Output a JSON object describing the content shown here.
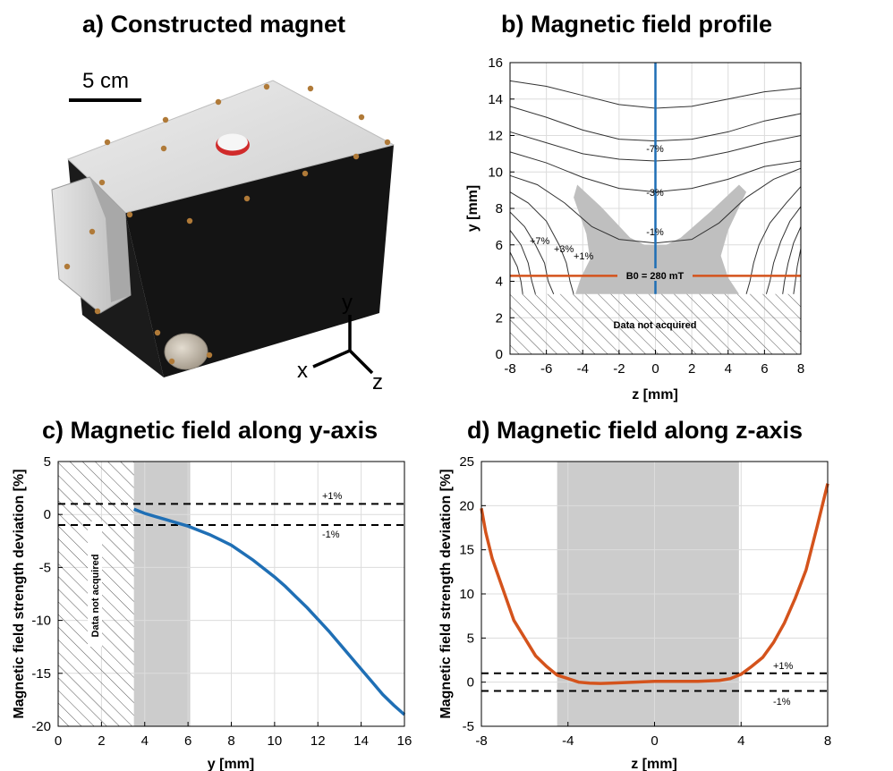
{
  "panel_a": {
    "title": "a) Constructed magnet",
    "scale_label": "5 cm",
    "axes_labels": {
      "y": "y",
      "x": "x",
      "z": "z"
    }
  },
  "chart_data": [
    {
      "id": "b",
      "type": "line",
      "title": "b) Magnetic field profile",
      "xlabel": "z [mm]",
      "ylabel": "y [mm]",
      "xlim": [
        -8,
        8
      ],
      "ylim": [
        0,
        16
      ],
      "xticks": [
        -8,
        -6,
        -4,
        -2,
        0,
        2,
        4,
        6,
        8
      ],
      "yticks": [
        0,
        2,
        4,
        6,
        8,
        10,
        12,
        14,
        16
      ],
      "grid": true,
      "masked_region": {
        "label": "Data not acquired",
        "y": [
          0,
          3.3
        ]
      },
      "vertical_line": {
        "z": 0,
        "color": "#1f6fb5"
      },
      "horizontal_line": {
        "y": 4.3,
        "color": "#d4531c",
        "label": "B0 = 280 mT"
      },
      "contour_labels": [
        "-7%",
        "-3%",
        "-1%",
        "+7%",
        "+3%",
        "+1%"
      ],
      "contours": [
        [
          [
            -8,
            15.0
          ],
          [
            -6,
            14.7
          ],
          [
            -4,
            14.2
          ],
          [
            -2,
            13.7
          ],
          [
            0,
            13.5
          ],
          [
            2,
            13.6
          ],
          [
            4,
            14.0
          ],
          [
            6,
            14.4
          ],
          [
            8,
            14.6
          ]
        ],
        [
          [
            -8,
            13.6
          ],
          [
            -6,
            13.0
          ],
          [
            -4,
            12.3
          ],
          [
            -2,
            11.8
          ],
          [
            0,
            11.7
          ],
          [
            2,
            11.8
          ],
          [
            4,
            12.2
          ],
          [
            6,
            12.8
          ],
          [
            8,
            13.2
          ]
        ],
        [
          [
            -8,
            12.2
          ],
          [
            -6,
            11.6
          ],
          [
            -4,
            11.0
          ],
          [
            -2,
            10.7
          ],
          [
            0,
            10.6
          ],
          [
            2,
            10.7
          ],
          [
            4,
            11.1
          ],
          [
            6,
            11.6
          ],
          [
            8,
            12.0
          ]
        ],
        [
          [
            -8,
            11.1
          ],
          [
            -6,
            10.5
          ],
          [
            -4,
            9.7
          ],
          [
            -2,
            9.1
          ],
          [
            0,
            8.9
          ],
          [
            2,
            9.1
          ],
          [
            4,
            9.6
          ],
          [
            6,
            10.3
          ],
          [
            8,
            10.6
          ]
        ],
        [
          [
            -8,
            9.8
          ],
          [
            -6.5,
            9.3
          ],
          [
            -5,
            8.3
          ],
          [
            -3.5,
            7.0
          ],
          [
            -2,
            6.3
          ],
          [
            0,
            6.1
          ],
          [
            2,
            6.3
          ],
          [
            3.5,
            7.2
          ],
          [
            5,
            8.6
          ],
          [
            6.5,
            9.6
          ],
          [
            8,
            10.2
          ]
        ],
        [
          [
            -8,
            8.9
          ],
          [
            -7,
            8.3
          ],
          [
            -6,
            7.3
          ],
          [
            -5.3,
            6.0
          ],
          [
            -4.9,
            5.0
          ],
          [
            -4.7,
            4.0
          ],
          [
            -4.5,
            3.3
          ]
        ],
        [
          [
            -8,
            7.8
          ],
          [
            -7.2,
            7.0
          ],
          [
            -6.6,
            6.0
          ],
          [
            -6.1,
            5.0
          ],
          [
            -5.9,
            4.0
          ],
          [
            -5.6,
            3.3
          ]
        ],
        [
          [
            -8,
            6.8
          ],
          [
            -7.4,
            6.0
          ],
          [
            -7.0,
            5.0
          ],
          [
            -6.8,
            4.0
          ],
          [
            -6.6,
            3.3
          ]
        ],
        [
          [
            -8,
            5.6
          ],
          [
            -7.6,
            4.8
          ],
          [
            -7.4,
            4.0
          ],
          [
            -7.3,
            3.3
          ]
        ],
        [
          [
            8,
            9.2
          ],
          [
            7.2,
            8.3
          ],
          [
            6.3,
            7.2
          ],
          [
            5.7,
            6.0
          ],
          [
            5.4,
            5.0
          ],
          [
            5.2,
            4.0
          ],
          [
            5.0,
            3.3
          ]
        ],
        [
          [
            8,
            8.1
          ],
          [
            7.4,
            7.3
          ],
          [
            6.9,
            6.2
          ],
          [
            6.5,
            5.0
          ],
          [
            6.3,
            4.0
          ],
          [
            6.1,
            3.3
          ]
        ],
        [
          [
            8,
            7.0
          ],
          [
            7.6,
            6.1
          ],
          [
            7.3,
            5.0
          ],
          [
            7.1,
            4.0
          ],
          [
            7.0,
            3.3
          ]
        ],
        [
          [
            8,
            5.8
          ],
          [
            7.8,
            4.8
          ],
          [
            7.7,
            4.0
          ],
          [
            7.6,
            3.3
          ]
        ]
      ],
      "shaded_region": [
        [
          -4.4,
          3.3
        ],
        [
          -4.1,
          4.2
        ],
        [
          -3.6,
          5.2
        ],
        [
          -3.8,
          6.6
        ],
        [
          -4.5,
          8.6
        ],
        [
          -4.3,
          9.3
        ],
        [
          -3.0,
          8.1
        ],
        [
          -1.4,
          6.4
        ],
        [
          -0.6,
          6.0
        ],
        [
          0.6,
          6.0
        ],
        [
          1.4,
          6.4
        ],
        [
          3.0,
          7.8
        ],
        [
          4.6,
          9.3
        ],
        [
          5.0,
          8.9
        ],
        [
          4.0,
          6.8
        ],
        [
          3.6,
          5.4
        ],
        [
          4.0,
          4.2
        ],
        [
          4.6,
          3.3
        ]
      ]
    },
    {
      "id": "c",
      "type": "line",
      "title": "c) Magnetic field along y-axis",
      "xlabel": "y [mm]",
      "ylabel": "Magnetic field strength deviation [%]",
      "xlim": [
        0,
        16
      ],
      "ylim": [
        -20,
        5
      ],
      "xticks": [
        0,
        2,
        4,
        6,
        8,
        10,
        12,
        14,
        16
      ],
      "yticks": [
        -20,
        -15,
        -10,
        -5,
        0,
        5
      ],
      "grid": true,
      "masked_region": {
        "label": "Data not acquired",
        "x": [
          0,
          3.5
        ]
      },
      "shaded_band": [
        3.5,
        6.1
      ],
      "thresholds": [
        {
          "value": 1,
          "label": "+1%"
        },
        {
          "value": -1,
          "label": "-1%"
        }
      ],
      "series": [
        {
          "color": "#1f6fb5",
          "x": [
            3.5,
            4.0,
            4.5,
            5.0,
            5.5,
            6.0,
            6.5,
            7.0,
            7.5,
            8.0,
            8.5,
            9.0,
            9.5,
            10.0,
            10.5,
            11.0,
            11.5,
            12.0,
            12.5,
            13.0,
            13.5,
            14.0,
            14.5,
            15.0,
            15.5,
            16.0
          ],
          "values": [
            0.5,
            0.1,
            -0.2,
            -0.5,
            -0.8,
            -1.1,
            -1.5,
            -1.9,
            -2.4,
            -2.9,
            -3.6,
            -4.3,
            -5.1,
            -5.9,
            -6.8,
            -7.8,
            -8.8,
            -9.9,
            -11.0,
            -12.2,
            -13.4,
            -14.6,
            -15.8,
            -17.0,
            -18.0,
            -18.9
          ]
        }
      ]
    },
    {
      "id": "d",
      "type": "line",
      "title": "d) Magnetic field along z-axis",
      "xlabel": "z [mm]",
      "ylabel": "Magnetic field strength deviation [%]",
      "xlim": [
        -8,
        8
      ],
      "ylim": [
        -5,
        25
      ],
      "xticks": [
        -8,
        -4,
        0,
        4,
        8
      ],
      "yticks": [
        -5,
        0,
        5,
        10,
        15,
        20,
        25
      ],
      "grid": true,
      "shaded_band": [
        -4.5,
        3.9
      ],
      "thresholds": [
        {
          "value": 1,
          "label": "+1%"
        },
        {
          "value": -1,
          "label": "-1%"
        }
      ],
      "series": [
        {
          "color": "#d4531c",
          "x": [
            -8.0,
            -7.8,
            -7.5,
            -7.0,
            -6.5,
            -6.0,
            -5.5,
            -5.0,
            -4.5,
            -4.0,
            -3.5,
            -3.0,
            -2.5,
            -2.0,
            -1.0,
            0.0,
            1.0,
            2.0,
            3.0,
            3.5,
            4.0,
            4.5,
            5.0,
            5.5,
            6.0,
            6.5,
            7.0,
            7.5,
            8.0
          ],
          "values": [
            19.7,
            17.0,
            14.0,
            10.5,
            7.0,
            5.0,
            3.0,
            1.8,
            0.8,
            0.4,
            0.0,
            -0.1,
            -0.15,
            -0.1,
            0.0,
            0.1,
            0.1,
            0.1,
            0.2,
            0.4,
            0.9,
            1.8,
            2.8,
            4.5,
            6.7,
            9.5,
            12.7,
            17.5,
            22.5
          ]
        }
      ]
    }
  ]
}
